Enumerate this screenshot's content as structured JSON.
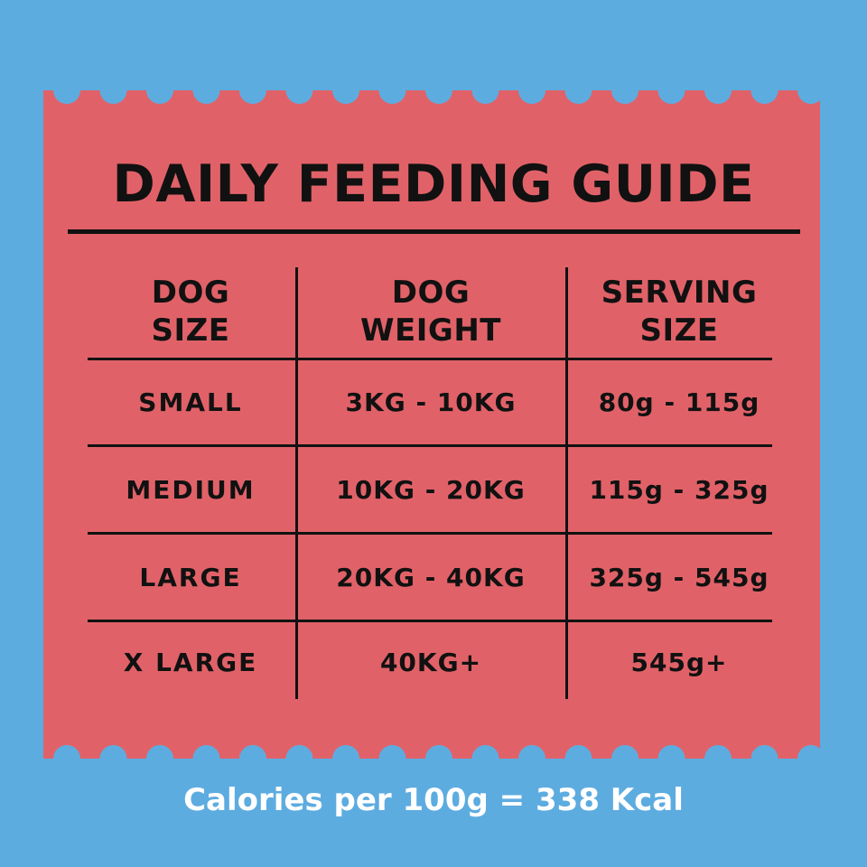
{
  "colors": {
    "background": "#5dace0",
    "card": "#e06268",
    "ink": "#111111",
    "footer_text": "#ffffff"
  },
  "title": "DAILY FEEDING GUIDE",
  "table": {
    "headers": [
      {
        "line1": "DOG",
        "line2": "SIZE"
      },
      {
        "line1": "DOG",
        "line2": "WEIGHT"
      },
      {
        "line1": "SERVING",
        "line2": "SIZE"
      }
    ],
    "rows": [
      {
        "size": "SMALL",
        "weight": "3KG - 10KG",
        "serving": "80g - 115g"
      },
      {
        "size": "MEDIUM",
        "weight": "10KG - 20KG",
        "serving": "115g - 325g"
      },
      {
        "size": "LARGE",
        "weight": "20KG - 40KG",
        "serving": "325g - 545g"
      },
      {
        "size": "X LARGE",
        "weight": "40KG+",
        "serving": "545g+"
      }
    ]
  },
  "footer": "Calories per 100g = 338 Kcal"
}
